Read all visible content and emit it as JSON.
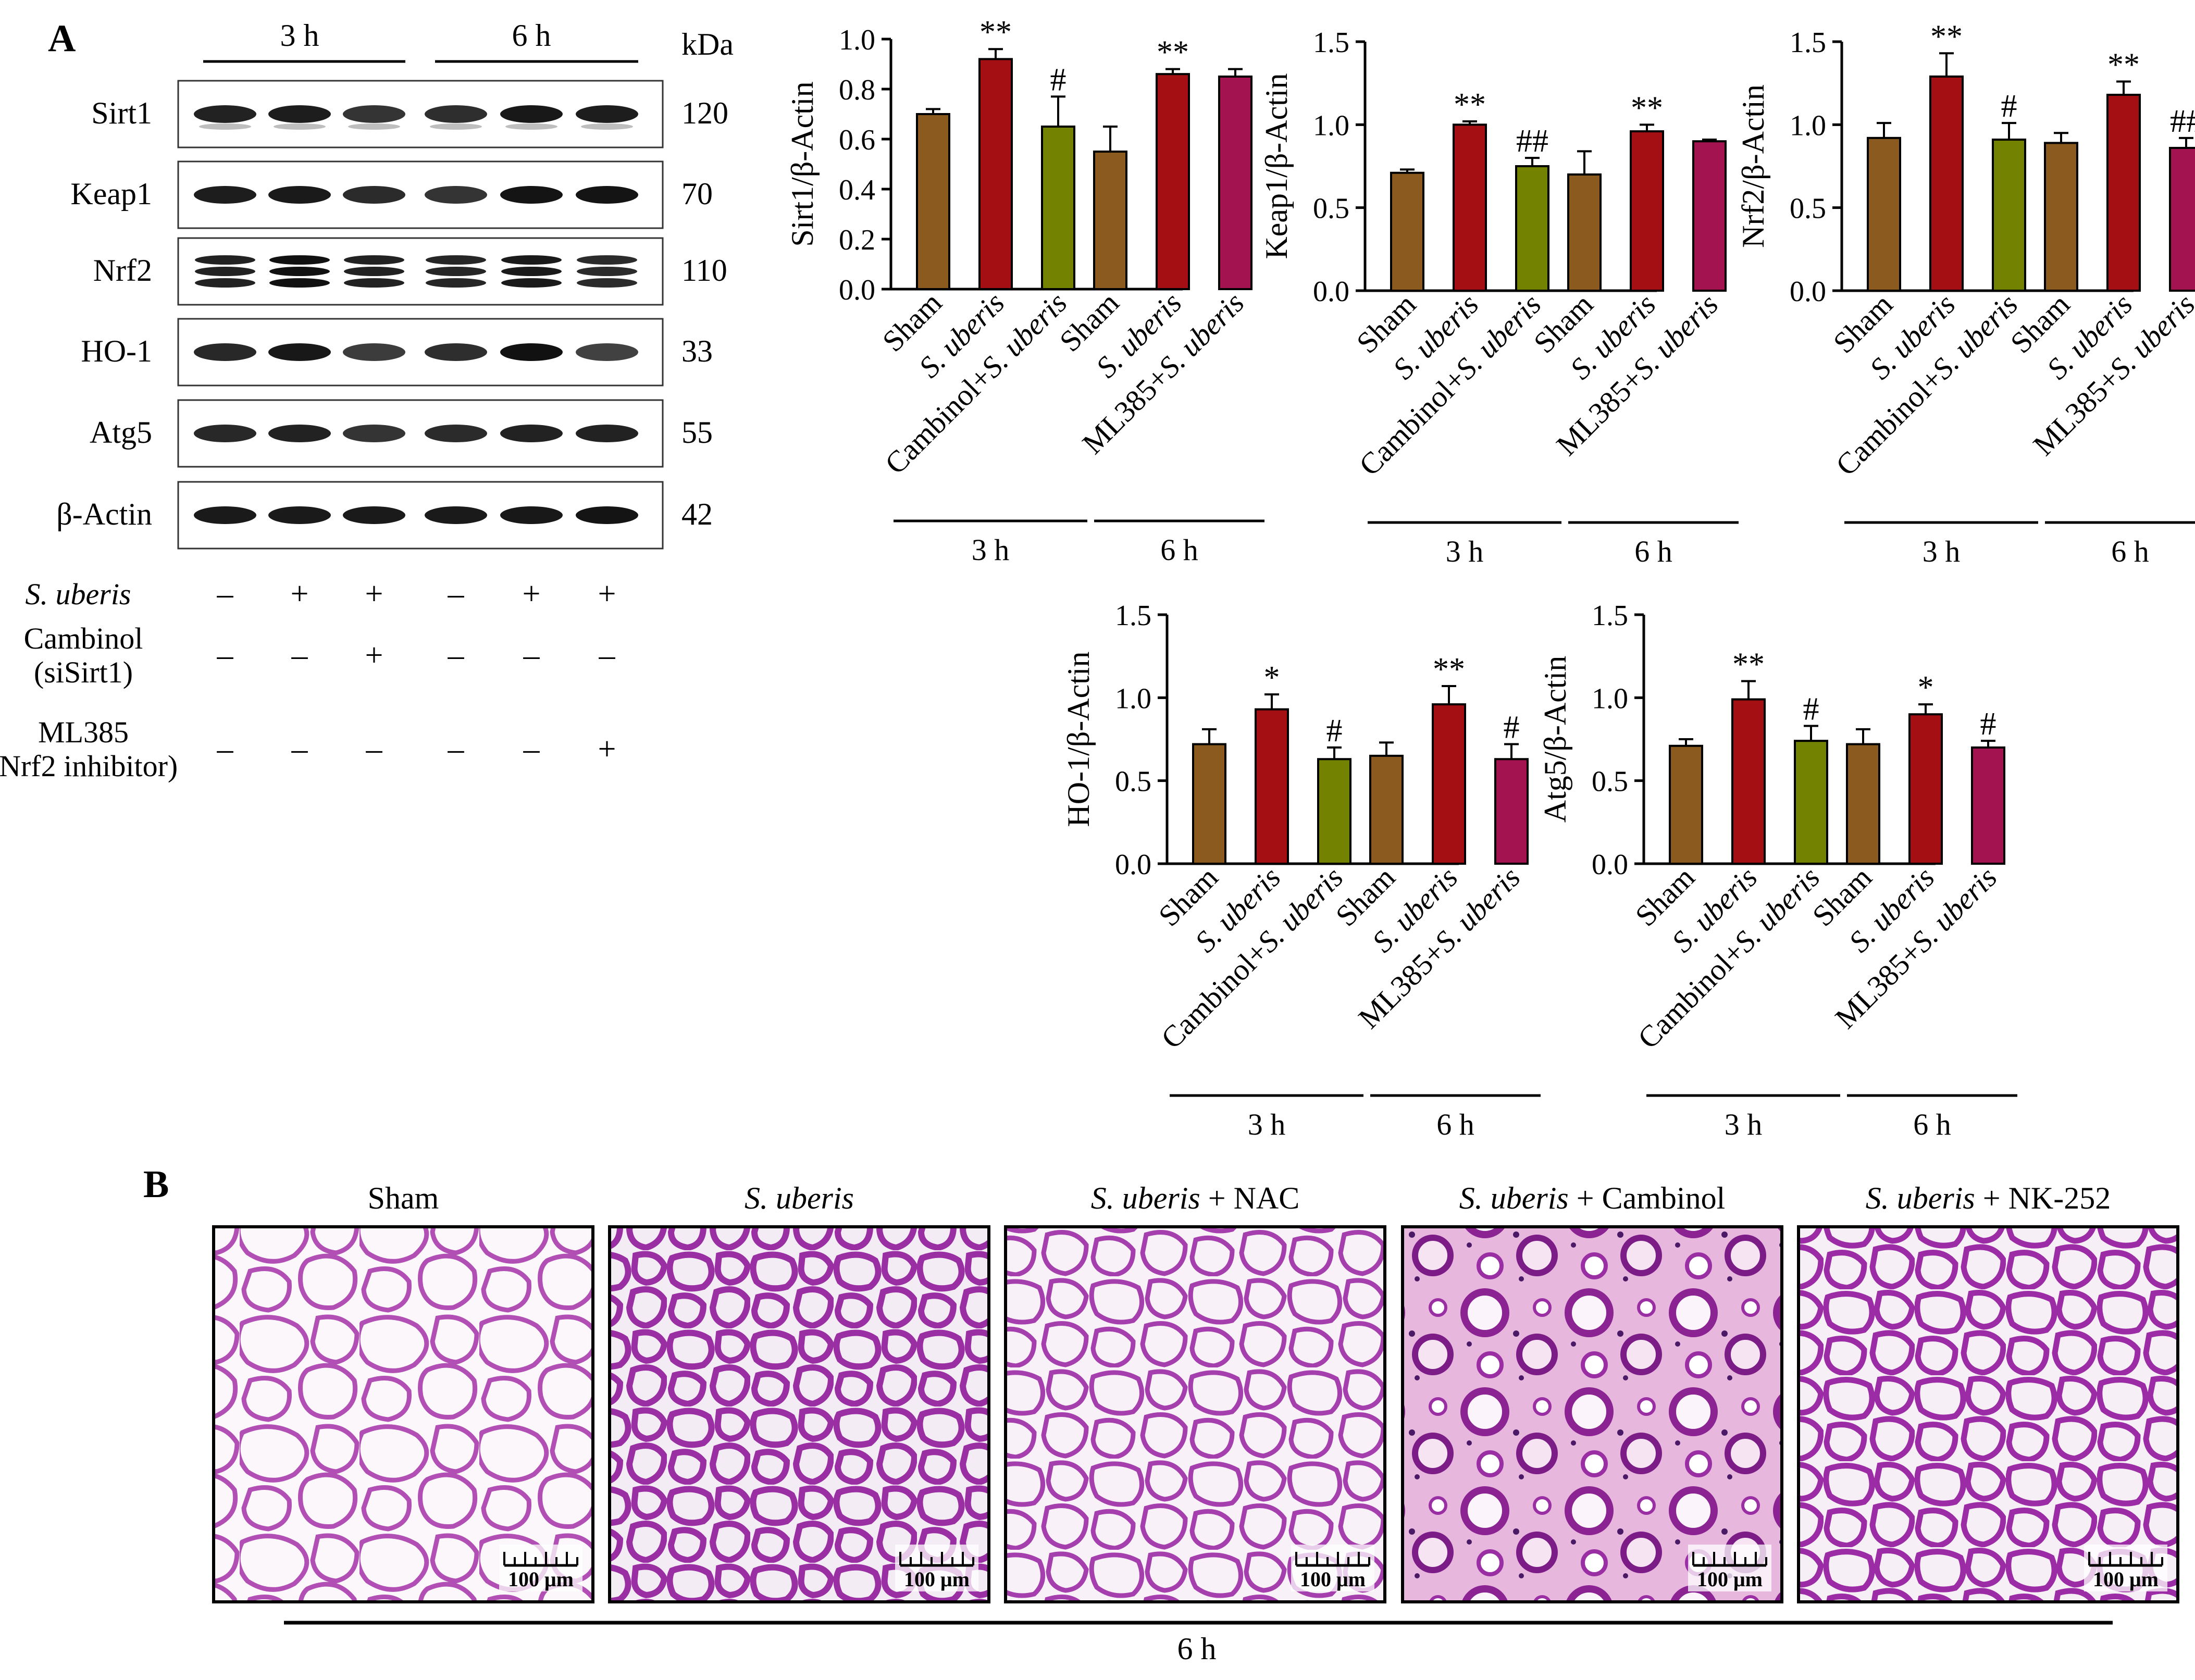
{
  "panel_a_label": "A",
  "panel_b_label": "B",
  "blot": {
    "timepoints": [
      "3 h",
      "6 h"
    ],
    "kda_header": "kDa",
    "proteins": [
      {
        "name": "Sirt1",
        "kda": "120"
      },
      {
        "name": "Keap1",
        "kda": "70"
      },
      {
        "name": "Nrf2",
        "kda": "110"
      },
      {
        "name": "HO-1",
        "kda": "33"
      },
      {
        "name": "Atg5",
        "kda": "55"
      },
      {
        "name": "β-Actin",
        "kda": "42"
      }
    ],
    "treatments": [
      {
        "label": "S. uberis",
        "italic": true,
        "signs": [
          "–",
          "+",
          "+",
          "–",
          "+",
          "+"
        ]
      },
      {
        "label": "Cambinol",
        "sub": "(siSirt1)",
        "italic": false,
        "signs": [
          "–",
          "–",
          "+",
          "–",
          "–",
          "–"
        ]
      },
      {
        "label": "ML385",
        "sub": "(Nrf2 inhibitor)",
        "italic": false,
        "signs": [
          "–",
          "–",
          "–",
          "–",
          "–",
          "+"
        ]
      }
    ]
  },
  "colors": {
    "sham": "#8B5A1E",
    "s_uberis": "#A30F12",
    "cambinol": "#738200",
    "ml385": "#A3134F"
  },
  "chart_data": [
    {
      "type": "bar",
      "ylabel": "Sirt1/β-Actin",
      "ylim": [
        0,
        1.0
      ],
      "yticks": [
        "0.0",
        "0.2",
        "0.4",
        "0.6",
        "0.8",
        "1.0"
      ],
      "groups": [
        {
          "label": "3 h",
          "categories": [
            "Sham",
            "S. uberis",
            "Cambinol+S. uberis"
          ],
          "values": [
            0.7,
            0.92,
            0.65
          ],
          "errors": [
            0.02,
            0.04,
            0.12
          ],
          "annotations": [
            "",
            "**",
            "#"
          ]
        },
        {
          "label": "6 h",
          "categories": [
            "Sham",
            "S. uberis",
            "ML385+S. uberis"
          ],
          "values": [
            0.55,
            0.86,
            0.85
          ],
          "errors": [
            0.1,
            0.02,
            0.03
          ],
          "annotations": [
            "",
            "**",
            ""
          ]
        }
      ]
    },
    {
      "type": "bar",
      "ylabel": "Keap1/β-Actin",
      "ylim": [
        0,
        1.5
      ],
      "yticks": [
        "0.0",
        "0.5",
        "1.0",
        "1.5"
      ],
      "groups": [
        {
          "label": "3 h",
          "categories": [
            "Sham",
            "S. uberis",
            "Cambinol+S. uberis"
          ],
          "values": [
            0.71,
            1.0,
            0.75
          ],
          "errors": [
            0.02,
            0.02,
            0.05
          ],
          "annotations": [
            "",
            "**",
            "##"
          ]
        },
        {
          "label": "6 h",
          "categories": [
            "Sham",
            "S. uberis",
            "ML385+S. uberis"
          ],
          "values": [
            0.7,
            0.96,
            0.9
          ],
          "errors": [
            0.14,
            0.04,
            0.01
          ],
          "annotations": [
            "",
            "**",
            ""
          ]
        }
      ]
    },
    {
      "type": "bar",
      "ylabel": "Nrf2/β-Actin",
      "ylim": [
        0,
        1.5
      ],
      "yticks": [
        "0.0",
        "0.5",
        "1.0",
        "1.5"
      ],
      "groups": [
        {
          "label": "3 h",
          "categories": [
            "Sham",
            "S. uberis",
            "Cambinol+S. uberis"
          ],
          "values": [
            0.92,
            1.29,
            0.91
          ],
          "errors": [
            0.09,
            0.14,
            0.1
          ],
          "annotations": [
            "",
            "**",
            "#"
          ]
        },
        {
          "label": "6 h",
          "categories": [
            "Sham",
            "S. uberis",
            "ML385+S. uberis"
          ],
          "values": [
            0.89,
            1.18,
            0.86
          ],
          "errors": [
            0.06,
            0.08,
            0.06
          ],
          "annotations": [
            "",
            "**",
            "##"
          ]
        }
      ]
    },
    {
      "type": "bar",
      "ylabel": "HO-1/β-Actin",
      "ylim": [
        0,
        1.5
      ],
      "yticks": [
        "0.0",
        "0.5",
        "1.0",
        "1.5"
      ],
      "groups": [
        {
          "label": "3 h",
          "categories": [
            "Sham",
            "S. uberis",
            "Cambinol+S. uberis"
          ],
          "values": [
            0.72,
            0.93,
            0.63
          ],
          "errors": [
            0.09,
            0.09,
            0.07
          ],
          "annotations": [
            "",
            "*",
            "#"
          ]
        },
        {
          "label": "6 h",
          "categories": [
            "Sham",
            "S. uberis",
            "ML385+S. uberis"
          ],
          "values": [
            0.65,
            0.96,
            0.63
          ],
          "errors": [
            0.08,
            0.11,
            0.09
          ],
          "annotations": [
            "",
            "**",
            "#"
          ]
        }
      ]
    },
    {
      "type": "bar",
      "ylabel": "Atg5/β-Actin",
      "ylim": [
        0,
        1.5
      ],
      "yticks": [
        "0.0",
        "0.5",
        "1.0",
        "1.5"
      ],
      "groups": [
        {
          "label": "3 h",
          "categories": [
            "Sham",
            "S. uberis",
            "Cambinol+S. uberis"
          ],
          "values": [
            0.71,
            0.99,
            0.74
          ],
          "errors": [
            0.04,
            0.11,
            0.09
          ],
          "annotations": [
            "",
            "**",
            "#"
          ]
        },
        {
          "label": "6 h",
          "categories": [
            "Sham",
            "S. uberis",
            "ML385+S. uberis"
          ],
          "values": [
            0.72,
            0.9,
            0.7
          ],
          "errors": [
            0.09,
            0.06,
            0.04
          ],
          "annotations": [
            "",
            "*",
            "#"
          ]
        }
      ]
    }
  ],
  "histology": {
    "timepoint": "6 h",
    "scale_label": "100 μm",
    "panels": [
      {
        "title_italic": "",
        "title_plain": "Sham",
        "theme": "sham"
      },
      {
        "title_italic": "S. uberis",
        "title_plain": "",
        "theme": "infected"
      },
      {
        "title_italic": "S. uberis",
        "title_plain": " + NAC",
        "theme": "nac"
      },
      {
        "title_italic": "S. uberis",
        "title_plain": " + Cambinol",
        "theme": "cambinol"
      },
      {
        "title_italic": "S. uberis",
        "title_plain": " + NK-252",
        "theme": "nk"
      }
    ]
  }
}
